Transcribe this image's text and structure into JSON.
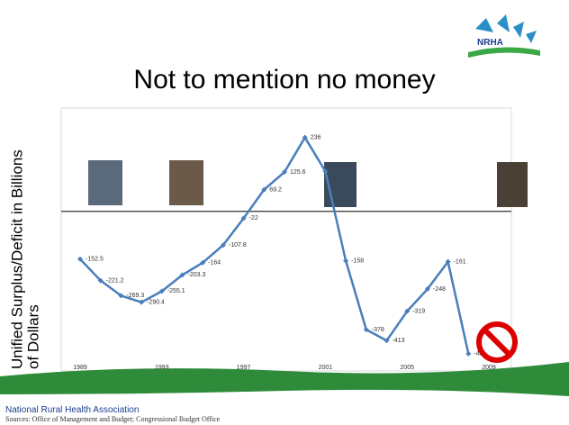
{
  "chart_data": {
    "type": "line",
    "title": "Not to mention no money",
    "y_label_lines": [
      "Unified Surplus/Deficit in Billions",
      "of Dollars"
    ],
    "categories": [
      "1989",
      null,
      null,
      null,
      "1993",
      null,
      null,
      null,
      "1997",
      null,
      null,
      null,
      "2001",
      null,
      null,
      null,
      "2005",
      null,
      null,
      null,
      "2009"
    ],
    "values": [
      -152.5,
      -221.2,
      -269.3,
      -290.4,
      -255.1,
      -203.3,
      -164,
      -107.8,
      -22,
      69.2,
      125.6,
      236,
      128,
      -158,
      -378,
      -413,
      -319,
      -248,
      -161,
      -455,
      null
    ],
    "value_labels": [
      "-152.5",
      "-221.2",
      "-269.3",
      "-290.4",
      "-255.1",
      "-203.3",
      "-164",
      "-107.8",
      "-22",
      "69.2",
      "125.6",
      "236",
      null,
      "-158",
      "-378",
      "-413",
      "-319",
      "-248",
      "-161",
      "-455",
      null
    ],
    "color": "#4a7ebb",
    "ylim": [
      -510,
      330
    ],
    "logo": "NRHA",
    "footer": "National Rural Health Association",
    "sources": "Sources: Office of Management and Budget; Congressional Budget Office"
  }
}
